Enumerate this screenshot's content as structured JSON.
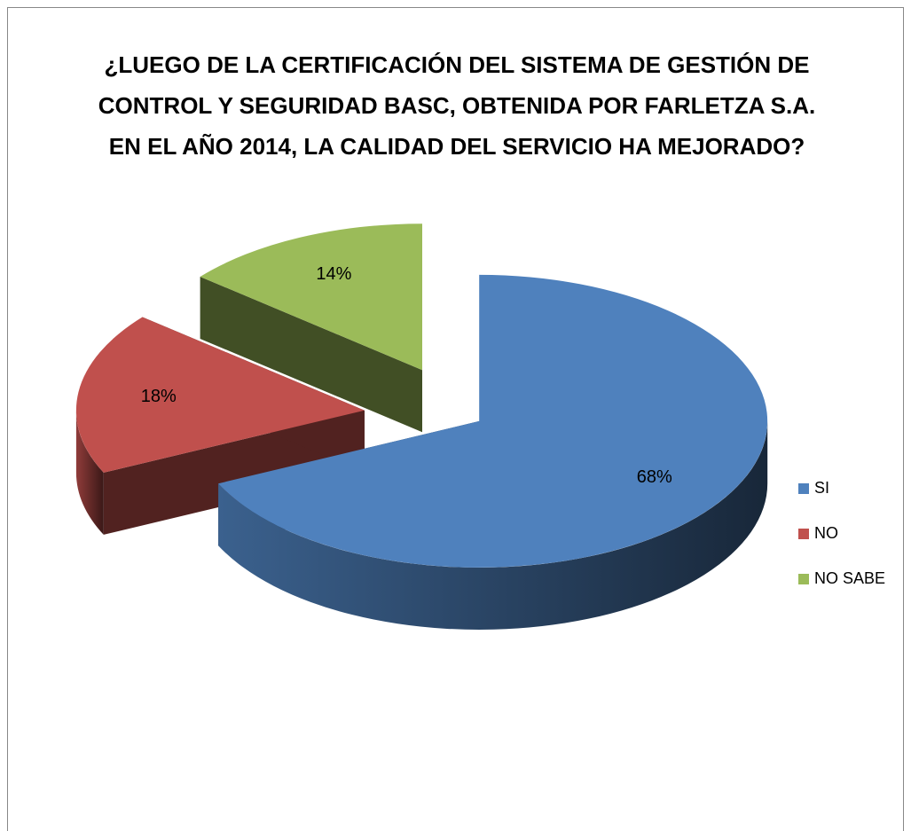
{
  "chart_data": {
    "type": "pie",
    "title": "¿LUEGO DE LA CERTIFICACIÓN DEL SISTEMA DE GESTIÓN DE CONTROL Y SEGURIDAD BASC, OBTENIDA POR FARLETZA S.A. EN EL AÑO 2014, LA CALIDAD DEL SERVICIO HA MEJORADO?",
    "categories": [
      "SI",
      "NO",
      "NO SABE"
    ],
    "values": [
      68,
      18,
      14
    ],
    "value_labels": [
      "68%",
      "18%",
      "14%"
    ],
    "colors": [
      "#4f81bd",
      "#c0504d",
      "#9bbb59"
    ],
    "legend": "right"
  }
}
